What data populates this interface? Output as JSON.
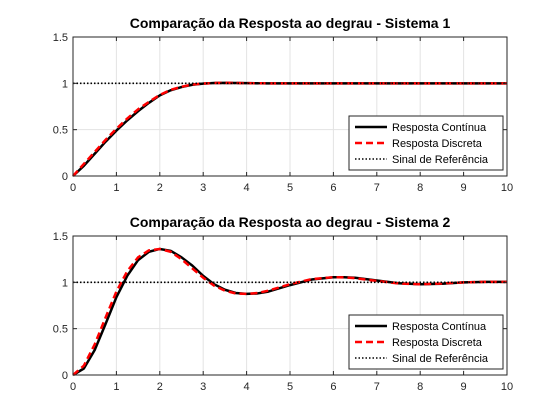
{
  "chart_data": [
    {
      "type": "line",
      "title": "Comparação da Resposta ao degrau - Sistema 1",
      "xlabel": "",
      "ylabel": "",
      "xlim": [
        0,
        10
      ],
      "ylim": [
        0,
        1.5
      ],
      "xticks": [
        "0",
        "1",
        "2",
        "3",
        "4",
        "5",
        "6",
        "7",
        "8",
        "9",
        "10"
      ],
      "yticks": [
        "0",
        "0.5",
        "1",
        "1.5"
      ],
      "grid": true,
      "legend_position": "bottom-right",
      "series": [
        {
          "name": "Resposta Contínua",
          "color": "#000000",
          "style": "solid",
          "x": [
            0,
            0.25,
            0.5,
            0.75,
            1,
            1.25,
            1.5,
            1.75,
            2,
            2.25,
            2.5,
            2.75,
            3,
            3.25,
            3.5,
            3.75,
            4,
            4.5,
            5,
            5.5,
            6,
            7,
            8,
            9,
            10
          ],
          "y": [
            0,
            0.11,
            0.24,
            0.37,
            0.49,
            0.6,
            0.7,
            0.79,
            0.87,
            0.925,
            0.96,
            0.985,
            0.997,
            1.003,
            1.005,
            1.004,
            1.002,
            1.0,
            1.0,
            1.0,
            1.0,
            1.0,
            1.0,
            1.0,
            1.0
          ]
        },
        {
          "name": "Resposta Discreta",
          "color": "#ff0000",
          "style": "dashed",
          "x": [
            0,
            0.25,
            0.5,
            0.75,
            1,
            1.25,
            1.5,
            1.75,
            2,
            2.25,
            2.5,
            2.75,
            3,
            3.25,
            3.5,
            3.75,
            4,
            4.5,
            5,
            5.5,
            6,
            7,
            8,
            9,
            10
          ],
          "y": [
            0,
            0.13,
            0.26,
            0.39,
            0.51,
            0.62,
            0.72,
            0.8,
            0.875,
            0.93,
            0.963,
            0.987,
            0.998,
            1.003,
            1.005,
            1.004,
            1.002,
            1.0,
            1.0,
            1.0,
            1.0,
            1.0,
            1.0,
            1.0,
            1.0
          ]
        },
        {
          "name": "Sinal de Referência",
          "color": "#000000",
          "style": "dotted",
          "x": [
            0,
            10
          ],
          "y": [
            1,
            1
          ]
        }
      ]
    },
    {
      "type": "line",
      "title": "Comparação da Resposta ao degrau - Sistema 2",
      "xlabel": "",
      "ylabel": "",
      "xlim": [
        0,
        10
      ],
      "ylim": [
        0,
        1.5
      ],
      "xticks": [
        "0",
        "1",
        "2",
        "3",
        "4",
        "5",
        "6",
        "7",
        "8",
        "9",
        "10"
      ],
      "yticks": [
        "0",
        "0.5",
        "1",
        "1.5"
      ],
      "grid": true,
      "legend_position": "bottom-right",
      "series": [
        {
          "name": "Resposta Contínua",
          "color": "#000000",
          "style": "solid",
          "x": [
            0,
            0.25,
            0.5,
            0.75,
            1,
            1.25,
            1.5,
            1.75,
            2,
            2.25,
            2.5,
            2.75,
            3,
            3.25,
            3.5,
            3.75,
            4,
            4.25,
            4.5,
            4.75,
            5,
            5.5,
            6,
            6.25,
            6.5,
            7,
            7.5,
            8,
            8.5,
            9,
            9.5,
            10
          ],
          "y": [
            0,
            0.07,
            0.27,
            0.55,
            0.84,
            1.07,
            1.24,
            1.33,
            1.36,
            1.34,
            1.27,
            1.18,
            1.07,
            0.98,
            0.92,
            0.885,
            0.875,
            0.88,
            0.9,
            0.935,
            0.97,
            1.03,
            1.055,
            1.055,
            1.05,
            1.02,
            0.99,
            0.98,
            0.985,
            1.0,
            1.005,
            1.005
          ]
        },
        {
          "name": "Resposta Discreta",
          "color": "#ff0000",
          "style": "dashed",
          "x": [
            0,
            0.25,
            0.5,
            0.75,
            1,
            1.25,
            1.5,
            1.75,
            2,
            2.25,
            2.5,
            2.75,
            3,
            3.25,
            3.5,
            3.75,
            4,
            4.25,
            4.5,
            4.75,
            5,
            5.5,
            6,
            6.25,
            6.5,
            7,
            7.5,
            8,
            8.5,
            9,
            9.5,
            10
          ],
          "y": [
            0,
            0.1,
            0.33,
            0.62,
            0.9,
            1.12,
            1.27,
            1.345,
            1.36,
            1.33,
            1.25,
            1.15,
            1.05,
            0.965,
            0.91,
            0.88,
            0.875,
            0.885,
            0.91,
            0.945,
            0.98,
            1.035,
            1.055,
            1.053,
            1.045,
            1.015,
            0.988,
            0.98,
            0.987,
            1.0,
            1.005,
            1.004
          ]
        },
        {
          "name": "Sinal de Referência",
          "color": "#000000",
          "style": "dotted",
          "x": [
            0,
            10
          ],
          "y": [
            1,
            1
          ]
        }
      ]
    }
  ]
}
